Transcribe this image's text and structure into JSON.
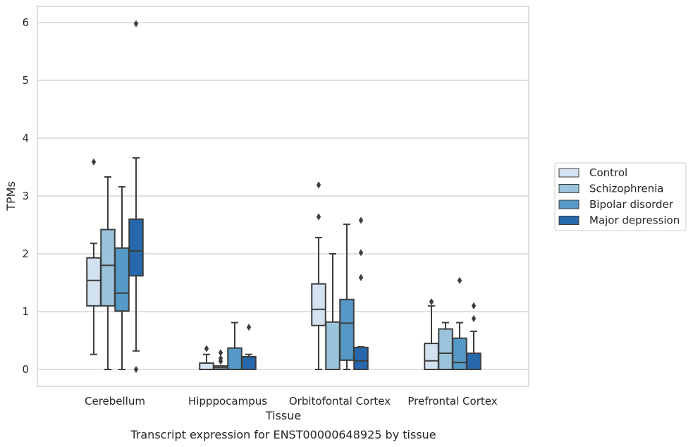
{
  "chart_data": {
    "type": "boxplot",
    "caption": "Transcript expression for ENST00000648925 by tissue",
    "xlabel": "Tissue",
    "ylabel": "TPMs",
    "ylim": [
      -0.29,
      6.28
    ],
    "yticks": [
      0,
      1,
      2,
      3,
      4,
      5,
      6
    ],
    "grid": true,
    "legend_position": "right",
    "categories": [
      "Cerebellum",
      "Hipppocampus",
      "Orbitofontal Cortex",
      "Prefrontal Cortex"
    ],
    "series": [
      {
        "name": "Control",
        "color": "#d3e2f1",
        "boxes": [
          {
            "whislo": 0.26,
            "q1": 1.1,
            "med": 1.54,
            "q3": 1.93,
            "whishi": 2.18,
            "fliers": [
              3.59
            ]
          },
          {
            "whislo": 0.0,
            "q1": 0.0,
            "med": 0.0,
            "q3": 0.11,
            "whishi": 0.26,
            "fliers": [
              0.36
            ]
          },
          {
            "whislo": 0.0,
            "q1": 0.76,
            "med": 1.04,
            "q3": 1.48,
            "whishi": 2.28,
            "fliers": [
              2.64,
              3.19
            ]
          },
          {
            "whislo": 0.0,
            "q1": 0.0,
            "med": 0.15,
            "q3": 0.45,
            "whishi": 1.1,
            "fliers": [
              1.17
            ]
          }
        ]
      },
      {
        "name": "Schizophrenia",
        "color": "#9ac3dc",
        "boxes": [
          {
            "whislo": 0.0,
            "q1": 1.1,
            "med": 1.8,
            "q3": 2.42,
            "whishi": 3.33,
            "fliers": []
          },
          {
            "whislo": 0.0,
            "q1": 0.0,
            "med": 0.03,
            "q3": 0.06,
            "whishi": 0.06,
            "fliers": [
              0.14,
              0.19,
              0.29
            ]
          },
          {
            "whislo": 0.0,
            "q1": 0.0,
            "med": 0.0,
            "q3": 0.82,
            "whishi": 2.0,
            "fliers": []
          },
          {
            "whislo": 0.0,
            "q1": 0.0,
            "med": 0.28,
            "q3": 0.7,
            "whishi": 0.81,
            "fliers": []
          }
        ]
      },
      {
        "name": "Bipolar disorder",
        "color": "#5599c7",
        "boxes": [
          {
            "whislo": 0.0,
            "q1": 1.01,
            "med": 1.32,
            "q3": 2.1,
            "whishi": 3.16,
            "fliers": []
          },
          {
            "whislo": 0.0,
            "q1": 0.0,
            "med": 0.0,
            "q3": 0.37,
            "whishi": 0.81,
            "fliers": []
          },
          {
            "whislo": 0.0,
            "q1": 0.16,
            "med": 0.8,
            "q3": 1.21,
            "whishi": 2.51,
            "fliers": []
          },
          {
            "whislo": 0.0,
            "q1": 0.0,
            "med": 0.12,
            "q3": 0.54,
            "whishi": 0.81,
            "fliers": [
              1.54
            ]
          }
        ]
      },
      {
        "name": "Major depression",
        "color": "#2768ac",
        "boxes": [
          {
            "whislo": 0.32,
            "q1": 1.62,
            "med": 2.05,
            "q3": 2.6,
            "whishi": 3.66,
            "fliers": [
              0.0,
              5.98
            ]
          },
          {
            "whislo": 0.0,
            "q1": 0.0,
            "med": 0.0,
            "q3": 0.22,
            "whishi": 0.26,
            "fliers": [
              0.73
            ]
          },
          {
            "whislo": 0.0,
            "q1": 0.0,
            "med": 0.15,
            "q3": 0.38,
            "whishi": 0.39,
            "fliers": [
              1.59,
              2.02,
              2.58
            ]
          },
          {
            "whislo": 0.0,
            "q1": 0.0,
            "med": 0.0,
            "q3": 0.28,
            "whishi": 0.66,
            "fliers": [
              0.88,
              1.1
            ]
          }
        ]
      }
    ]
  }
}
